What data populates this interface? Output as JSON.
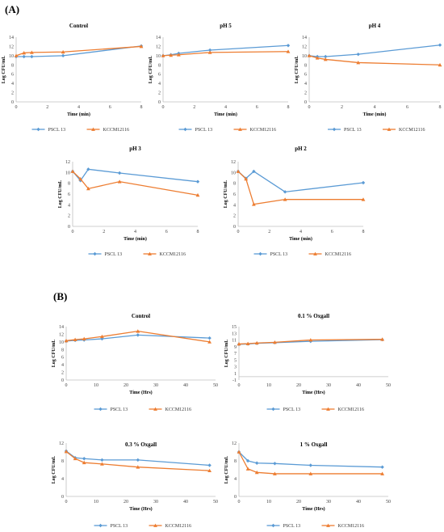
{
  "panel_labels": [
    "(A)",
    "(B)"
  ],
  "colors": {
    "PSCL 13": "#5b9bd5",
    "KCCM12116": "#ed7d31"
  },
  "chart_data": [
    {
      "type": "line",
      "title": "Control",
      "xlabel": "Time (min)",
      "ylabel": "Log CFU/mL",
      "xlim": [
        0,
        8
      ],
      "xticks": [
        0,
        2,
        4,
        6,
        8
      ],
      "ylim": [
        0,
        14
      ],
      "yticks": [
        0,
        2,
        4,
        6,
        8,
        10,
        12,
        14
      ],
      "x": [
        0,
        0.5,
        1,
        3,
        8
      ],
      "series": [
        {
          "name": "PSCL 13",
          "values": [
            9.8,
            9.8,
            9.8,
            10.0,
            12.1
          ]
        },
        {
          "name": "KCCM12116",
          "values": [
            10.0,
            10.6,
            10.7,
            10.8,
            12.0
          ]
        }
      ]
    },
    {
      "type": "line",
      "title": "pH 5",
      "xlabel": "Time (min)",
      "ylabel": "Log CFU/mL",
      "xlim": [
        0,
        8
      ],
      "xticks": [
        0,
        2,
        4,
        6,
        8
      ],
      "ylim": [
        0,
        14
      ],
      "yticks": [
        0,
        2,
        4,
        6,
        8,
        10,
        12,
        14
      ],
      "x": [
        0,
        0.5,
        1,
        3,
        8
      ],
      "series": [
        {
          "name": "PSCL 13",
          "values": [
            10.0,
            10.2,
            10.5,
            11.2,
            12.2
          ]
        },
        {
          "name": "KCCM12116",
          "values": [
            10.0,
            10.1,
            10.2,
            10.7,
            10.9
          ]
        }
      ]
    },
    {
      "type": "line",
      "title": "pH 4",
      "xlabel": "Time (min)",
      "ylabel": "Log CFU/mL",
      "xlim": [
        0,
        8
      ],
      "xticks": [
        0,
        2,
        4,
        6,
        8
      ],
      "ylim": [
        0,
        14
      ],
      "yticks": [
        0,
        2,
        4,
        6,
        8,
        10,
        12,
        14
      ],
      "x": [
        0,
        0.5,
        1,
        3,
        8
      ],
      "series": [
        {
          "name": "PSCL 13",
          "values": [
            10.0,
            9.8,
            9.8,
            10.3,
            12.3
          ]
        },
        {
          "name": "KCCM12116",
          "values": [
            10.0,
            9.5,
            9.2,
            8.5,
            8.0
          ]
        }
      ]
    },
    {
      "type": "line",
      "title": "pH 3",
      "xlabel": "Time (min)",
      "ylabel": "Log CFU/mL",
      "xlim": [
        0,
        8
      ],
      "xticks": [
        0,
        2,
        4,
        6,
        8
      ],
      "ylim": [
        0,
        12
      ],
      "yticks": [
        0,
        2,
        4,
        6,
        8,
        10,
        12
      ],
      "x": [
        0,
        0.5,
        1,
        3,
        8
      ],
      "series": [
        {
          "name": "PSCL 13",
          "values": [
            10.2,
            8.5,
            10.6,
            9.9,
            8.3
          ]
        },
        {
          "name": "KCCM12116",
          "values": [
            10.2,
            8.8,
            7.0,
            8.3,
            5.8
          ]
        }
      ]
    },
    {
      "type": "line",
      "title": "pH 2",
      "xlabel": "Time (min)",
      "ylabel": "Log CFU/mL",
      "xlim": [
        0,
        8
      ],
      "xticks": [
        0,
        2,
        4,
        6,
        8
      ],
      "ylim": [
        0,
        12
      ],
      "yticks": [
        0,
        2,
        4,
        6,
        8,
        10,
        12
      ],
      "x": [
        0,
        0.5,
        1,
        3,
        8
      ],
      "series": [
        {
          "name": "PSCL 13",
          "values": [
            10.2,
            8.9,
            10.2,
            6.4,
            8.1
          ]
        },
        {
          "name": "KCCM12116",
          "values": [
            10.2,
            8.8,
            4.1,
            5.0,
            5.0
          ]
        }
      ]
    },
    {
      "type": "line",
      "title": "Control",
      "xlabel": "Time (Hrs)",
      "ylabel": "Log CFU/mL",
      "xlim": [
        0,
        50
      ],
      "xticks": [
        0,
        10,
        20,
        30,
        40,
        50
      ],
      "ylim": [
        0,
        14
      ],
      "yticks": [
        0,
        2,
        4,
        6,
        8,
        10,
        12,
        14
      ],
      "x": [
        0,
        3,
        6,
        12,
        24,
        48
      ],
      "series": [
        {
          "name": "PSCL 13",
          "values": [
            10.2,
            10.4,
            10.5,
            10.8,
            11.8,
            11.0
          ]
        },
        {
          "name": "KCCM12116",
          "values": [
            10.3,
            10.6,
            10.8,
            11.4,
            12.8,
            10.0
          ]
        }
      ]
    },
    {
      "type": "line",
      "title": "0.1 % Oxgall",
      "xlabel": "Time (Hrs)",
      "ylabel": "Log CFU/mL",
      "xlim": [
        0,
        50
      ],
      "xticks": [
        0,
        10,
        20,
        30,
        40,
        50
      ],
      "ylim": [
        -1,
        15
      ],
      "yticks": [
        -1,
        1,
        3,
        5,
        7,
        9,
        11,
        13,
        15
      ],
      "x": [
        0,
        3,
        6,
        12,
        24,
        48
      ],
      "series": [
        {
          "name": "PSCL 13",
          "values": [
            9.7,
            9.8,
            10.0,
            10.2,
            10.6,
            11.1
          ]
        },
        {
          "name": "KCCM12116",
          "values": [
            9.8,
            9.9,
            10.1,
            10.3,
            11.0,
            11.2
          ]
        }
      ]
    },
    {
      "type": "line",
      "title": "0.3 % Oxgall",
      "xlabel": "Time (Hrs)",
      "ylabel": "Log CFU/mL",
      "xlim": [
        0,
        50
      ],
      "xticks": [
        0,
        10,
        20,
        30,
        40,
        50
      ],
      "ylim": [
        0,
        12
      ],
      "yticks": [
        0,
        4,
        8,
        12
      ],
      "x": [
        0,
        3,
        6,
        12,
        24,
        48
      ],
      "series": [
        {
          "name": "PSCL 13",
          "values": [
            10.2,
            8.7,
            8.5,
            8.2,
            8.2,
            7.0
          ]
        },
        {
          "name": "KCCM12116",
          "values": [
            10.1,
            8.5,
            7.6,
            7.3,
            6.6,
            5.8
          ]
        }
      ]
    },
    {
      "type": "line",
      "title": "1 % Oxgall",
      "xlabel": "Time (Hrs)",
      "ylabel": "Log CFU/mL",
      "xlim": [
        0,
        50
      ],
      "xticks": [
        0,
        10,
        20,
        30,
        40,
        50
      ],
      "ylim": [
        0,
        12
      ],
      "yticks": [
        0,
        4,
        8,
        12
      ],
      "x": [
        0,
        3,
        6,
        12,
        24,
        48
      ],
      "series": [
        {
          "name": "PSCL 13",
          "values": [
            10.0,
            8.0,
            7.5,
            7.4,
            7.0,
            6.6
          ]
        },
        {
          "name": "KCCM12116",
          "values": [
            10.0,
            6.2,
            5.4,
            5.1,
            5.1,
            5.1
          ]
        }
      ]
    }
  ]
}
